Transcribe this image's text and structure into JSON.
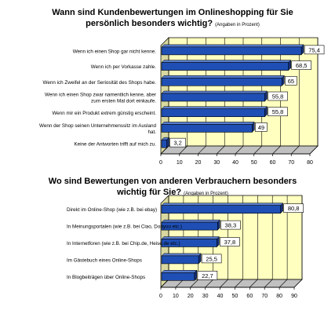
{
  "chart_data": [
    {
      "type": "bar",
      "orientation": "horizontal",
      "title": "Wann sind Kundenbewertungen im Onlineshopping für Sie persönlich besonders wichtig?",
      "title_note": "(Angaben in Prozent)",
      "categories": [
        "Wenn ich einen Shop gar nicht kenne.",
        "Wenn ich per Vorkasse zahle.",
        "Wenn ich Zweifel an der Seriosität des Shops habe.",
        "Wenn ich einen Shop zwar namentlich kenne, aber zum ersten Mal dort einkaufe.",
        "Wenn mir ein Produkt extrem günstig erscheint.",
        "Wenn der Shop seinen Unternehmenssitz im Ausland hat.",
        "Keine der Antworten trifft auf mich zu."
      ],
      "values": [
        75.4,
        68.5,
        65,
        55.8,
        55.8,
        49,
        3.2
      ],
      "value_labels": [
        "75,4",
        "68,5",
        "65",
        "55,8",
        "55,8",
        "49",
        "3,2"
      ],
      "xlim": [
        0,
        80
      ],
      "xticks": [
        "0",
        "10",
        "20",
        "30",
        "40",
        "50",
        "60",
        "70",
        "80"
      ],
      "grid": true,
      "bar_color": "#1f4fb4",
      "plot_background": "#ffffc0"
    },
    {
      "type": "bar",
      "orientation": "horizontal",
      "title": "Wo sind Bewertungen von anderen Verbrauchern besonders wichtig für Sie?",
      "title_note": "(Angaben in Prozent)",
      "categories": [
        "Direkt im Online-Shop (wie z.B. bei ebay)",
        "In Meinungsportalen (wie z.B. bei Ciao, Dooyoo etc.)",
        "In Internetforen (wie z.B. bei Chip.de, Heise.de etc.)",
        "Im Gästebuch eines Online-Shops",
        "In Blogbeiträgen über Online-Shops"
      ],
      "values": [
        80.8,
        38.3,
        37.8,
        25.5,
        22.7
      ],
      "value_labels": [
        "80,8",
        "38,3",
        "37,8",
        "25,5",
        "22,7"
      ],
      "xlim": [
        0,
        90
      ],
      "xticks": [
        "0",
        "10",
        "20",
        "30",
        "40",
        "50",
        "60",
        "70",
        "80",
        "90"
      ],
      "grid": true,
      "bar_color": "#1f4fb4",
      "plot_background": "#ffffc0"
    }
  ]
}
